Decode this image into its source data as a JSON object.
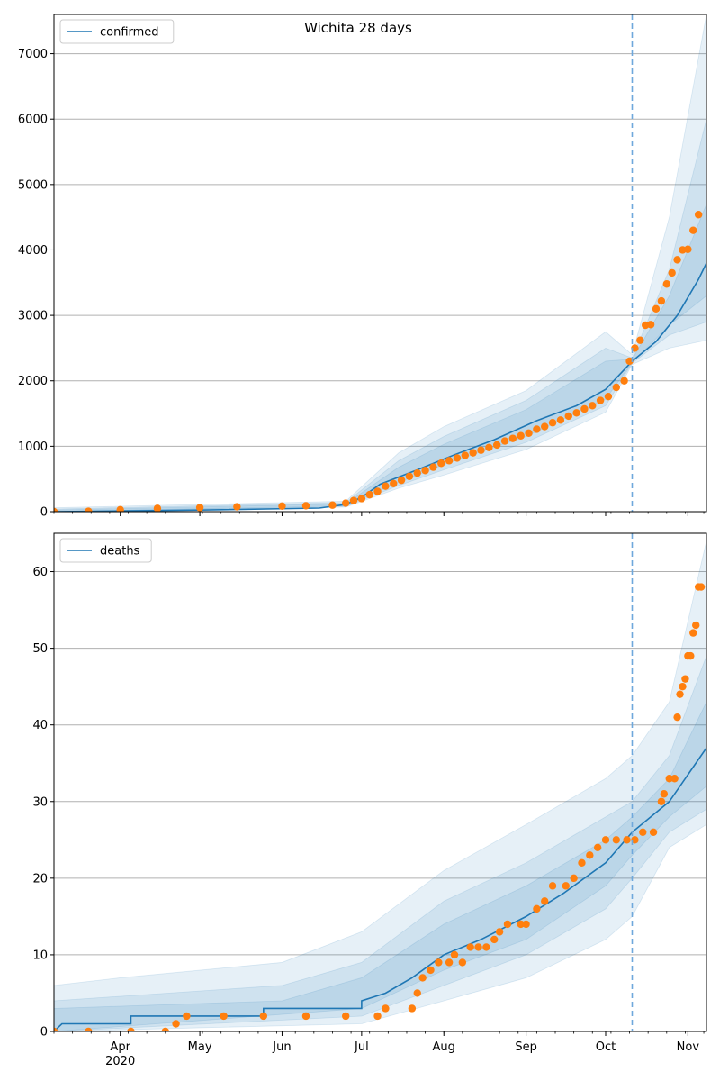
{
  "chart_data": [
    {
      "type": "line",
      "title": "Wichita 28 days",
      "legend": {
        "entries": [
          "confirmed"
        ],
        "placement": "top-left"
      },
      "xlim": [
        "2020-03-07",
        "2020-11-08"
      ],
      "ylim": [
        0,
        7600
      ],
      "yticks": [
        0,
        1000,
        2000,
        3000,
        4000,
        5000,
        6000,
        7000
      ],
      "grid": "y",
      "vline_date": "2020-10-11",
      "model_median": [
        [
          "2020-03-07",
          0
        ],
        [
          "2020-05-01",
          25
        ],
        [
          "2020-06-15",
          55
        ],
        [
          "2020-06-25",
          110
        ],
        [
          "2020-07-01",
          220
        ],
        [
          "2020-07-08",
          420
        ],
        [
          "2020-07-22",
          640
        ],
        [
          "2020-08-05",
          870
        ],
        [
          "2020-08-20",
          1100
        ],
        [
          "2020-09-05",
          1390
        ],
        [
          "2020-09-20",
          1620
        ],
        [
          "2020-10-01",
          1870
        ],
        [
          "2020-10-11",
          2300
        ],
        [
          "2020-10-20",
          2600
        ],
        [
          "2020-10-28",
          3000
        ],
        [
          "2020-11-05",
          3550
        ],
        [
          "2020-11-08",
          3800
        ]
      ],
      "bands": [
        {
          "lo": [
            [
              "2020-03-07",
              0
            ],
            [
              "2020-06-25",
              70
            ],
            [
              "2020-07-15",
              360
            ],
            [
              "2020-08-01",
              560
            ],
            [
              "2020-09-01",
              950
            ],
            [
              "2020-10-01",
              1520
            ],
            [
              "2020-10-11",
              2250
            ],
            [
              "2020-10-25",
              2500
            ],
            [
              "2020-11-08",
              2620
            ]
          ],
          "hi": [
            [
              "2020-03-07",
              60
            ],
            [
              "2020-06-25",
              160
            ],
            [
              "2020-07-15",
              900
            ],
            [
              "2020-08-01",
              1300
            ],
            [
              "2020-09-01",
              1850
            ],
            [
              "2020-10-01",
              2750
            ],
            [
              "2020-10-11",
              2400
            ],
            [
              "2020-10-25",
              4500
            ],
            [
              "2020-11-08",
              7600
            ]
          ]
        },
        {
          "lo": [
            [
              "2020-03-07",
              0
            ],
            [
              "2020-06-25",
              80
            ],
            [
              "2020-07-15",
              400
            ],
            [
              "2020-08-01",
              640
            ],
            [
              "2020-09-01",
              1060
            ],
            [
              "2020-10-01",
              1620
            ],
            [
              "2020-10-11",
              2270
            ],
            [
              "2020-10-25",
              2700
            ],
            [
              "2020-11-08",
              2900
            ]
          ],
          "hi": [
            [
              "2020-03-07",
              40
            ],
            [
              "2020-06-25",
              140
            ],
            [
              "2020-07-15",
              780
            ],
            [
              "2020-08-01",
              1150
            ],
            [
              "2020-09-01",
              1700
            ],
            [
              "2020-10-01",
              2500
            ],
            [
              "2020-10-11",
              2350
            ],
            [
              "2020-10-25",
              3700
            ],
            [
              "2020-11-08",
              6000
            ]
          ]
        },
        {
          "lo": [
            [
              "2020-03-07",
              0
            ],
            [
              "2020-06-25",
              90
            ],
            [
              "2020-07-15",
              450
            ],
            [
              "2020-08-01",
              720
            ],
            [
              "2020-09-01",
              1150
            ],
            [
              "2020-10-01",
              1720
            ],
            [
              "2020-10-11",
              2280
            ],
            [
              "2020-10-25",
              2850
            ],
            [
              "2020-11-08",
              3300
            ]
          ],
          "hi": [
            [
              "2020-03-07",
              25
            ],
            [
              "2020-06-25",
              120
            ],
            [
              "2020-07-15",
              680
            ],
            [
              "2020-08-01",
              1030
            ],
            [
              "2020-09-01",
              1560
            ],
            [
              "2020-10-01",
              2300
            ],
            [
              "2020-10-11",
              2330
            ],
            [
              "2020-10-25",
              3300
            ],
            [
              "2020-11-08",
              4700
            ]
          ]
        }
      ],
      "observed": [
        [
          "2020-03-07",
          0
        ],
        [
          "2020-03-20",
          5
        ],
        [
          "2020-04-01",
          30
        ],
        [
          "2020-04-15",
          50
        ],
        [
          "2020-05-01",
          62
        ],
        [
          "2020-05-15",
          75
        ],
        [
          "2020-06-01",
          85
        ],
        [
          "2020-06-10",
          90
        ],
        [
          "2020-06-20",
          100
        ],
        [
          "2020-06-25",
          130
        ],
        [
          "2020-06-28",
          170
        ],
        [
          "2020-07-01",
          200
        ],
        [
          "2020-07-04",
          260
        ],
        [
          "2020-07-07",
          310
        ],
        [
          "2020-07-10",
          390
        ],
        [
          "2020-07-13",
          430
        ],
        [
          "2020-07-16",
          480
        ],
        [
          "2020-07-19",
          540
        ],
        [
          "2020-07-22",
          590
        ],
        [
          "2020-07-25",
          630
        ],
        [
          "2020-07-28",
          680
        ],
        [
          "2020-07-31",
          740
        ],
        [
          "2020-08-03",
          780
        ],
        [
          "2020-08-06",
          820
        ],
        [
          "2020-08-09",
          860
        ],
        [
          "2020-08-12",
          900
        ],
        [
          "2020-08-15",
          940
        ],
        [
          "2020-08-18",
          980
        ],
        [
          "2020-08-21",
          1020
        ],
        [
          "2020-08-24",
          1080
        ],
        [
          "2020-08-27",
          1120
        ],
        [
          "2020-08-30",
          1160
        ],
        [
          "2020-09-02",
          1200
        ],
        [
          "2020-09-05",
          1260
        ],
        [
          "2020-09-08",
          1300
        ],
        [
          "2020-09-11",
          1360
        ],
        [
          "2020-09-14",
          1400
        ],
        [
          "2020-09-17",
          1460
        ],
        [
          "2020-09-20",
          1510
        ],
        [
          "2020-09-23",
          1570
        ],
        [
          "2020-09-26",
          1620
        ],
        [
          "2020-09-29",
          1700
        ],
        [
          "2020-10-02",
          1760
        ],
        [
          "2020-10-05",
          1900
        ],
        [
          "2020-10-08",
          2000
        ],
        [
          "2020-10-10",
          2300
        ],
        [
          "2020-10-12",
          2500
        ],
        [
          "2020-10-14",
          2620
        ],
        [
          "2020-10-16",
          2850
        ],
        [
          "2020-10-18",
          2860
        ],
        [
          "2020-10-20",
          3100
        ],
        [
          "2020-10-22",
          3220
        ],
        [
          "2020-10-24",
          3480
        ],
        [
          "2020-10-26",
          3650
        ],
        [
          "2020-10-28",
          3850
        ],
        [
          "2020-10-30",
          4000
        ],
        [
          "2020-11-01",
          4010
        ],
        [
          "2020-11-03",
          4300
        ],
        [
          "2020-11-05",
          4540
        ]
      ]
    },
    {
      "type": "line",
      "title": "",
      "legend": {
        "entries": [
          "deaths"
        ],
        "placement": "top-left"
      },
      "xlim": [
        "2020-03-07",
        "2020-11-08"
      ],
      "ylim": [
        0,
        65
      ],
      "yticks": [
        0,
        10,
        20,
        30,
        40,
        50,
        60
      ],
      "grid": "y",
      "vline_date": "2020-10-11",
      "xticks": [
        {
          "date": "2020-04-01",
          "label": "Apr",
          "sublabel": "2020"
        },
        {
          "date": "2020-05-01",
          "label": "May"
        },
        {
          "date": "2020-06-01",
          "label": "Jun"
        },
        {
          "date": "2020-07-01",
          "label": "Jul"
        },
        {
          "date": "2020-08-01",
          "label": "Aug"
        },
        {
          "date": "2020-09-01",
          "label": "Sep"
        },
        {
          "date": "2020-10-01",
          "label": "Oct"
        },
        {
          "date": "2020-11-01",
          "label": "Nov"
        }
      ],
      "model_median": [
        [
          "2020-03-07",
          0
        ],
        [
          "2020-03-10",
          1
        ],
        [
          "2020-04-05",
          1
        ],
        [
          "2020-04-05",
          2
        ],
        [
          "2020-05-25",
          2
        ],
        [
          "2020-05-25",
          3
        ],
        [
          "2020-07-01",
          3
        ],
        [
          "2020-07-01",
          4
        ],
        [
          "2020-07-10",
          5
        ],
        [
          "2020-07-20",
          7
        ],
        [
          "2020-08-01",
          10
        ],
        [
          "2020-08-15",
          12
        ],
        [
          "2020-09-01",
          15
        ],
        [
          "2020-09-15",
          18
        ],
        [
          "2020-10-01",
          22
        ],
        [
          "2020-10-11",
          26
        ],
        [
          "2020-10-25",
          30
        ],
        [
          "2020-11-08",
          37
        ]
      ],
      "bands": [
        {
          "lo": [
            [
              "2020-03-07",
              0
            ],
            [
              "2020-07-01",
              1
            ],
            [
              "2020-08-01",
              4
            ],
            [
              "2020-09-01",
              7
            ],
            [
              "2020-10-01",
              12
            ],
            [
              "2020-10-11",
              15
            ],
            [
              "2020-10-25",
              24
            ],
            [
              "2020-11-08",
              27
            ]
          ],
          "hi": [
            [
              "2020-03-07",
              6
            ],
            [
              "2020-04-01",
              7
            ],
            [
              "2020-06-01",
              9
            ],
            [
              "2020-07-01",
              13
            ],
            [
              "2020-08-01",
              21
            ],
            [
              "2020-09-01",
              27
            ],
            [
              "2020-10-01",
              33
            ],
            [
              "2020-10-11",
              36
            ],
            [
              "2020-10-25",
              43
            ],
            [
              "2020-11-08",
              64
            ]
          ]
        },
        {
          "lo": [
            [
              "2020-03-07",
              0
            ],
            [
              "2020-07-01",
              2
            ],
            [
              "2020-08-01",
              6
            ],
            [
              "2020-09-01",
              10
            ],
            [
              "2020-10-01",
              16
            ],
            [
              "2020-10-11",
              20
            ],
            [
              "2020-10-25",
              26
            ],
            [
              "2020-11-08",
              29
            ]
          ],
          "hi": [
            [
              "2020-03-07",
              4
            ],
            [
              "2020-06-01",
              6
            ],
            [
              "2020-07-01",
              9
            ],
            [
              "2020-08-01",
              17
            ],
            [
              "2020-09-01",
              22
            ],
            [
              "2020-10-01",
              28
            ],
            [
              "2020-10-11",
              30
            ],
            [
              "2020-10-25",
              36
            ],
            [
              "2020-11-08",
              49
            ]
          ]
        },
        {
          "lo": [
            [
              "2020-03-07",
              0
            ],
            [
              "2020-07-01",
              3
            ],
            [
              "2020-08-01",
              8
            ],
            [
              "2020-09-01",
              12
            ],
            [
              "2020-10-01",
              19
            ],
            [
              "2020-10-11",
              23
            ],
            [
              "2020-10-25",
              28
            ],
            [
              "2020-11-08",
              32
            ]
          ],
          "hi": [
            [
              "2020-03-07",
              3
            ],
            [
              "2020-06-01",
              4
            ],
            [
              "2020-07-01",
              7
            ],
            [
              "2020-08-01",
              14
            ],
            [
              "2020-09-01",
              19
            ],
            [
              "2020-10-01",
              25
            ],
            [
              "2020-10-11",
              28
            ],
            [
              "2020-10-25",
              33
            ],
            [
              "2020-11-08",
              43
            ]
          ]
        }
      ],
      "observed": [
        [
          "2020-03-07",
          0
        ],
        [
          "2020-03-20",
          0
        ],
        [
          "2020-04-05",
          0
        ],
        [
          "2020-04-18",
          0
        ],
        [
          "2020-04-22",
          1
        ],
        [
          "2020-04-26",
          2
        ],
        [
          "2020-05-10",
          2
        ],
        [
          "2020-05-25",
          2
        ],
        [
          "2020-06-10",
          2
        ],
        [
          "2020-06-25",
          2
        ],
        [
          "2020-07-07",
          2
        ],
        [
          "2020-07-10",
          3
        ],
        [
          "2020-07-20",
          3
        ],
        [
          "2020-07-22",
          5
        ],
        [
          "2020-07-24",
          7
        ],
        [
          "2020-07-27",
          8
        ],
        [
          "2020-07-30",
          9
        ],
        [
          "2020-08-03",
          9
        ],
        [
          "2020-08-05",
          10
        ],
        [
          "2020-08-08",
          9
        ],
        [
          "2020-08-11",
          11
        ],
        [
          "2020-08-14",
          11
        ],
        [
          "2020-08-17",
          11
        ],
        [
          "2020-08-20",
          12
        ],
        [
          "2020-08-22",
          13
        ],
        [
          "2020-08-25",
          14
        ],
        [
          "2020-08-30",
          14
        ],
        [
          "2020-09-01",
          14
        ],
        [
          "2020-09-05",
          16
        ],
        [
          "2020-09-08",
          17
        ],
        [
          "2020-09-11",
          19
        ],
        [
          "2020-09-16",
          19
        ],
        [
          "2020-09-19",
          20
        ],
        [
          "2020-09-22",
          22
        ],
        [
          "2020-09-25",
          23
        ],
        [
          "2020-09-28",
          24
        ],
        [
          "2020-10-01",
          25
        ],
        [
          "2020-10-05",
          25
        ],
        [
          "2020-10-09",
          25
        ],
        [
          "2020-10-12",
          25
        ],
        [
          "2020-10-15",
          26
        ],
        [
          "2020-10-19",
          26
        ],
        [
          "2020-10-22",
          30
        ],
        [
          "2020-10-23",
          31
        ],
        [
          "2020-10-25",
          33
        ],
        [
          "2020-10-27",
          33
        ],
        [
          "2020-10-28",
          41
        ],
        [
          "2020-10-29",
          44
        ],
        [
          "2020-10-30",
          45
        ],
        [
          "2020-10-31",
          46
        ],
        [
          "2020-11-01",
          49
        ],
        [
          "2020-11-02",
          49
        ],
        [
          "2020-11-03",
          52
        ],
        [
          "2020-11-04",
          53
        ],
        [
          "2020-11-05",
          58
        ],
        [
          "2020-11-06",
          58
        ]
      ]
    }
  ],
  "colors": {
    "line": "#1f77b4",
    "observed": "#ff7f0e",
    "band": "#1f77b4",
    "vline": "#6fa8dc",
    "grid": "#b0b0b0"
  }
}
